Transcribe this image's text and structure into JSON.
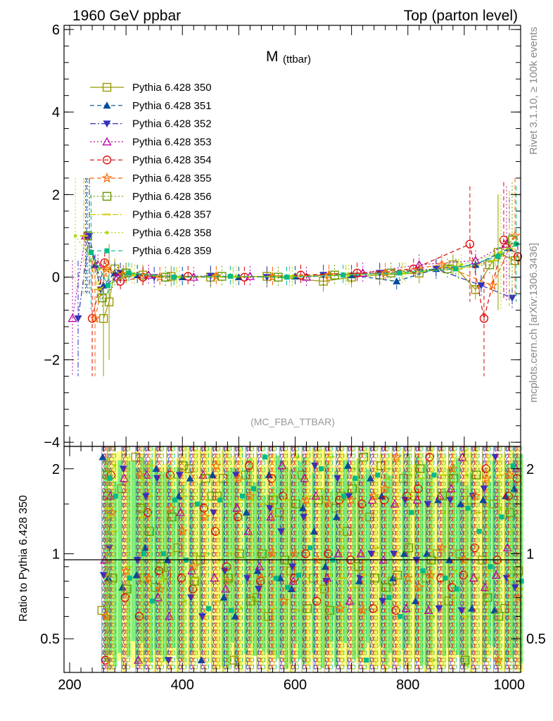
{
  "header": {
    "left": "1960 GeV ppbar",
    "right": "Top (parton level)"
  },
  "side_labels": {
    "rivet": "Rivet 3.1.10, ≥ 100k events",
    "mcplots": "mcplots.cern.ch [arXiv:1306.3436]"
  },
  "colors": {
    "band_inner": "#80ee80",
    "band_outer": "#ffff88"
  },
  "chart_data": [
    {
      "type": "line",
      "title": "M",
      "title_sub": "(ttbar)",
      "analysis_tag": "(MC_FBA_TTBAR)",
      "xlabel": "",
      "ylabel": "",
      "xlim": [
        190,
        1000
      ],
      "ylim": [
        -4.1,
        6.1
      ],
      "yticks": [
        -4,
        -2,
        0,
        2,
        4,
        6
      ],
      "ytick_labels": [
        "−4",
        "−2",
        "0",
        "2",
        "4",
        "6"
      ],
      "xticks": [
        200,
        400,
        600,
        800,
        1000
      ],
      "grid": false,
      "legend_position": "top-left",
      "series": [
        {
          "name": "Pythia 6.428 350",
          "color": "#999900",
          "marker": "square-open",
          "dash": "solid",
          "x": [
            260,
            270,
            280,
            300,
            330,
            380,
            450,
            550,
            650,
            700,
            750,
            820,
            880,
            920,
            960,
            990
          ],
          "y": [
            -1.0,
            -0.6,
            0.2,
            0.1,
            0.05,
            0.02,
            0.0,
            0.02,
            -0.1,
            0.0,
            0.05,
            0.1,
            0.3,
            -0.3,
            0.6,
            0.4
          ]
        },
        {
          "name": "Pythia 6.428 351",
          "color": "#004c99",
          "marker": "triangle-up-filled",
          "dash": "dashed",
          "x": [
            230,
            245,
            260,
            280,
            320,
            400,
            500,
            600,
            700,
            780,
            850,
            920,
            980
          ],
          "y": [
            1.0,
            0.3,
            -0.2,
            0.1,
            0.05,
            0.0,
            0.0,
            0.02,
            0.05,
            -0.1,
            0.2,
            0.3,
            0.7
          ]
        },
        {
          "name": "Pythia 6.428 352",
          "color": "#3333bb",
          "marker": "triangle-down-filled",
          "dash": "dashdot",
          "x": [
            215,
            235,
            255,
            290,
            350,
            450,
            550,
            650,
            750,
            850,
            930,
            985
          ],
          "y": [
            -1.0,
            1.0,
            -0.3,
            0.1,
            0.0,
            0.03,
            0.0,
            0.05,
            0.1,
            0.2,
            -0.2,
            -0.5
          ]
        },
        {
          "name": "Pythia 6.428 353",
          "color": "#bb00aa",
          "marker": "triangle-up-open",
          "dash": "dotted",
          "x": [
            205,
            228,
            250,
            285,
            340,
            420,
            520,
            620,
            720,
            820,
            920,
            975
          ],
          "y": [
            -1.0,
            1.0,
            0.3,
            0.0,
            0.05,
            0.0,
            0.02,
            0.0,
            0.1,
            0.3,
            0.4,
            0.8
          ]
        },
        {
          "name": "Pythia 6.428 354",
          "color": "#dd0000",
          "marker": "circle-open",
          "dash": "dashed",
          "x": [
            240,
            262,
            290,
            330,
            410,
            510,
            610,
            710,
            810,
            910,
            935,
            970,
            995
          ],
          "y": [
            -1.0,
            0.35,
            -0.1,
            0.0,
            0.02,
            0.0,
            0.05,
            0.1,
            0.2,
            0.8,
            -1.0,
            0.9,
            0.5
          ]
        },
        {
          "name": "Pythia 6.428 355",
          "color": "#ff6600",
          "marker": "star-open",
          "dash": "dashed",
          "x": [
            245,
            265,
            295,
            360,
            460,
            560,
            660,
            760,
            860,
            950,
            990
          ],
          "y": [
            -1.0,
            0.2,
            0.05,
            0.0,
            0.02,
            0.0,
            0.05,
            0.1,
            0.3,
            -0.2,
            1.0
          ]
        },
        {
          "name": "Pythia 6.428 356",
          "color": "#669900",
          "marker": "square-open",
          "dash": "dotted",
          "x": [
            232,
            258,
            300,
            370,
            470,
            570,
            670,
            770,
            870,
            945,
            985
          ],
          "y": [
            1.0,
            -0.5,
            0.1,
            0.0,
            0.02,
            0.0,
            0.05,
            0.1,
            0.2,
            0.3,
            0.9
          ]
        },
        {
          "name": "Pythia 6.428 357",
          "color": "#cccc00",
          "marker": "dash",
          "dash": "dashdot",
          "x": [
            225,
            250,
            310,
            390,
            490,
            590,
            690,
            790,
            890,
            955,
            980
          ],
          "y": [
            1.0,
            -0.3,
            0.1,
            0.0,
            0.0,
            0.03,
            0.05,
            0.1,
            0.2,
            0.4,
            0.7
          ]
        },
        {
          "name": "Pythia 6.428 358",
          "color": "#aadd00",
          "marker": "dot",
          "dash": "dotted",
          "x": [
            210,
            252,
            315,
            395,
            495,
            595,
            695,
            795,
            895,
            965
          ],
          "y": [
            1.0,
            0.2,
            0.05,
            0.0,
            0.02,
            0.0,
            0.05,
            0.1,
            0.3,
            0.6
          ]
        },
        {
          "name": "Pythia 6.428 359",
          "color": "#00bb88",
          "marker": "square-filled",
          "dash": "dashed",
          "x": [
            238,
            268,
            305,
            385,
            485,
            585,
            685,
            785,
            885,
            960,
            992
          ],
          "y": [
            0.6,
            -0.2,
            0.1,
            0.0,
            0.02,
            0.0,
            0.05,
            0.1,
            0.2,
            0.5,
            0.8
          ]
        }
      ]
    },
    {
      "type": "line",
      "title": "",
      "xlabel": "",
      "ylabel": "Ratio to Pythia 6.428 350",
      "xlim": [
        190,
        1000
      ],
      "ylim": [
        0.38,
        2.4
      ],
      "log_y": true,
      "yticks": [
        0.5,
        1,
        2
      ],
      "ytick_labels": [
        "0.5",
        "1",
        "2"
      ],
      "xticks": [
        200,
        400,
        600,
        800,
        1000
      ],
      "xtick_labels": [
        "200",
        "400",
        "600",
        "800",
        "1000"
      ],
      "reference_line": 1,
      "band_range": [
        260,
        1000
      ],
      "markers_note": "ratio points scattered between 0.4 and 2.4 for all series",
      "sample_ratio_points": {
        "x": [
          265,
          275,
          300,
          325,
          340,
          360,
          380,
          400,
          420,
          440,
          460,
          480,
          500,
          520,
          540,
          560,
          580,
          600,
          620,
          640,
          660,
          680,
          700,
          720,
          740,
          760,
          780,
          800,
          820,
          840,
          860,
          880,
          900,
          920,
          940,
          960,
          980,
          995
        ],
        "y": [
          0.63,
          1.6,
          1.7,
          2.2,
          0.82,
          0.76,
          0.84,
          1.05,
          2.0,
          0.95,
          1.6,
          1.85,
          0.42,
          1.9,
          0.7,
          0.6,
          1.4,
          0.87,
          1.9,
          0.82,
          0.75,
          1.45,
          1.2,
          0.9,
          1.35,
          2.05,
          0.8,
          1.85,
          1.6,
          0.82,
          1.0,
          0.68,
          1.0,
          1.55,
          0.95,
          1.5,
          0.64,
          1.55
        ]
      }
    }
  ]
}
